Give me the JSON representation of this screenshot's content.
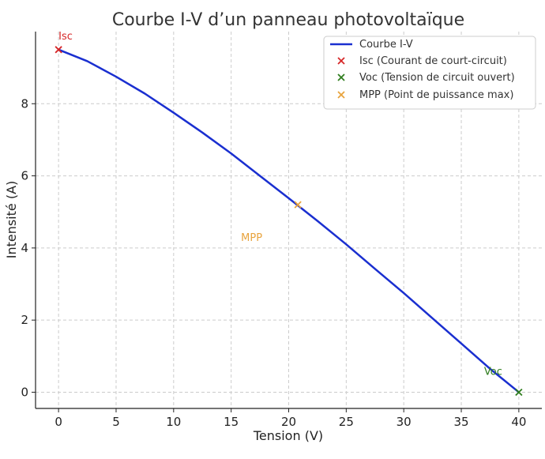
{
  "chart_data": {
    "type": "line",
    "title": "Courbe I-V d’un panneau photovoltaïque",
    "xlabel": "Tension (V)",
    "ylabel": "Intensité (A)",
    "xlim": [
      -2,
      42
    ],
    "ylim": [
      -0.45,
      10.0
    ],
    "xticks": [
      0,
      5,
      10,
      15,
      20,
      25,
      30,
      35,
      40
    ],
    "yticks": [
      0,
      2,
      4,
      6,
      8
    ],
    "grid": true,
    "legend_position": "top-right",
    "series": [
      {
        "name": "Courbe I-V",
        "color": "#1a2fd0",
        "x": [
          0,
          2.5,
          5,
          7.5,
          10,
          12.5,
          15,
          17.5,
          20,
          22.5,
          25,
          27.5,
          30,
          32.5,
          35,
          37.5,
          40
        ],
        "y": [
          9.5,
          9.18,
          8.75,
          8.28,
          7.75,
          7.2,
          6.62,
          6.0,
          5.38,
          4.75,
          4.1,
          3.42,
          2.75,
          2.05,
          1.35,
          0.65,
          0.0
        ]
      }
    ],
    "points": [
      {
        "name": "Isc (Courant de court-circuit)",
        "label": "Isc",
        "x": 0,
        "y": 9.5,
        "color": "#d62728",
        "marker": "x"
      },
      {
        "name": "Voc (Tension de circuit ouvert)",
        "label": "Voc",
        "x": 40,
        "y": 0,
        "color": "#2f7d1e",
        "marker": "x"
      },
      {
        "name": "MPP (Point de puissance max)",
        "label": "MPP",
        "x": 20.8,
        "y": 5.2,
        "color": "#e8a33d",
        "marker": "x"
      }
    ]
  }
}
